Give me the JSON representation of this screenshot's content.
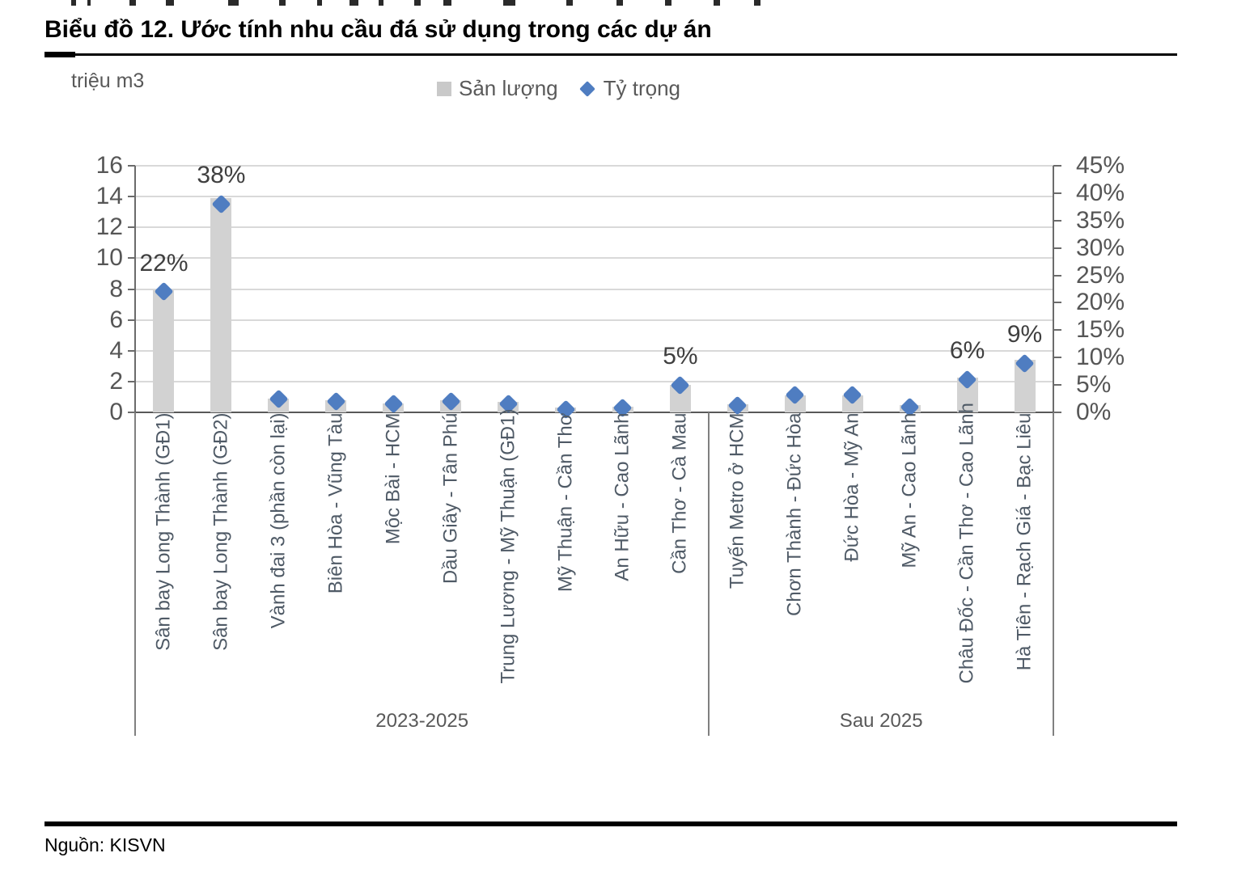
{
  "title": "Biểu đồ 12. Ước tính nhu cầu đá sử dụng trong các dự án",
  "source": "Nguồn: KISVN",
  "axis_unit_label": "triệu m3",
  "legend": {
    "bar_series_label": "Sản lượng",
    "marker_series_label": "Tỷ trọng"
  },
  "colors": {
    "bar": "#d2d2d2",
    "legend_bar_swatch": "#c9c9c9",
    "marker": "#4f7dc1",
    "gridline": "#d9d9d9",
    "axis_line": "#6b6b6b"
  },
  "chart_data": {
    "type": "bar",
    "subtype": "combo-bar-with-diamond-markers",
    "title": "Biểu đồ 12. Ước tính nhu cầu đá sử dụng trong các dự án",
    "xlabel": "",
    "ylabel_left": "triệu m3",
    "ylabel_right": "%",
    "grid": true,
    "legend_position": "top-center",
    "categories": [
      "Sân bay Long Thành (GĐ1)",
      "Sân bay Long Thành (GĐ2)",
      "Vành đai 3 (phần còn lại)",
      "Biên Hòa - Vũng Tàu",
      "Mộc Bài - HCM",
      "Dầu Giây - Tân Phú",
      "Trung Lương - Mỹ Thuận (GĐ1)",
      "Mỹ Thuận - Cần Thơ",
      "An Hữu - Cao Lãnh",
      "Cần Thơ - Cà Mau",
      "Tuyến Metro ở HCM",
      "Chơn Thành - Đức Hòa",
      "Đức Hòa - Mỹ An",
      "Mỹ An - Cao Lãnh",
      "Châu Đốc - Cần Thơ - Cao Lãnh",
      "Hà Tiên - Rạch Giá - Bạc Liêu"
    ],
    "series": [
      {
        "name": "Sản lượng",
        "axis": "left",
        "unit": "triệu m3",
        "mark": "bar",
        "values": [
          7.9,
          13.9,
          0.9,
          0.8,
          0.6,
          0.8,
          0.7,
          0.3,
          0.35,
          1.8,
          0.5,
          1.1,
          1.1,
          0.45,
          2.25,
          3.4
        ]
      },
      {
        "name": "Tỷ trọng",
        "axis": "right",
        "unit": "%",
        "mark": "diamond",
        "values": [
          22,
          38,
          2.5,
          2,
          1.5,
          2,
          1.5,
          0.5,
          0.8,
          5,
          1.2,
          3.2,
          3.1,
          1,
          6,
          9
        ]
      }
    ],
    "point_labels": {
      "0": "22%",
      "1": "38%",
      "9": "5%",
      "14": "6%",
      "15": "9%"
    },
    "groups": [
      {
        "label": "2023-2025",
        "from": 0,
        "to": 9
      },
      {
        "label": "Sau 2025",
        "from": 10,
        "to": 15
      }
    ],
    "left_axis": {
      "min": 0,
      "max": 16,
      "step": 2,
      "ticks": [
        "0",
        "2",
        "4",
        "6",
        "8",
        "10",
        "12",
        "14",
        "16"
      ]
    },
    "right_axis": {
      "min": 0,
      "max": 45,
      "step": 5,
      "ticks": [
        "0%",
        "5%",
        "10%",
        "15%",
        "20%",
        "25%",
        "30%",
        "35%",
        "40%",
        "45%"
      ]
    }
  }
}
